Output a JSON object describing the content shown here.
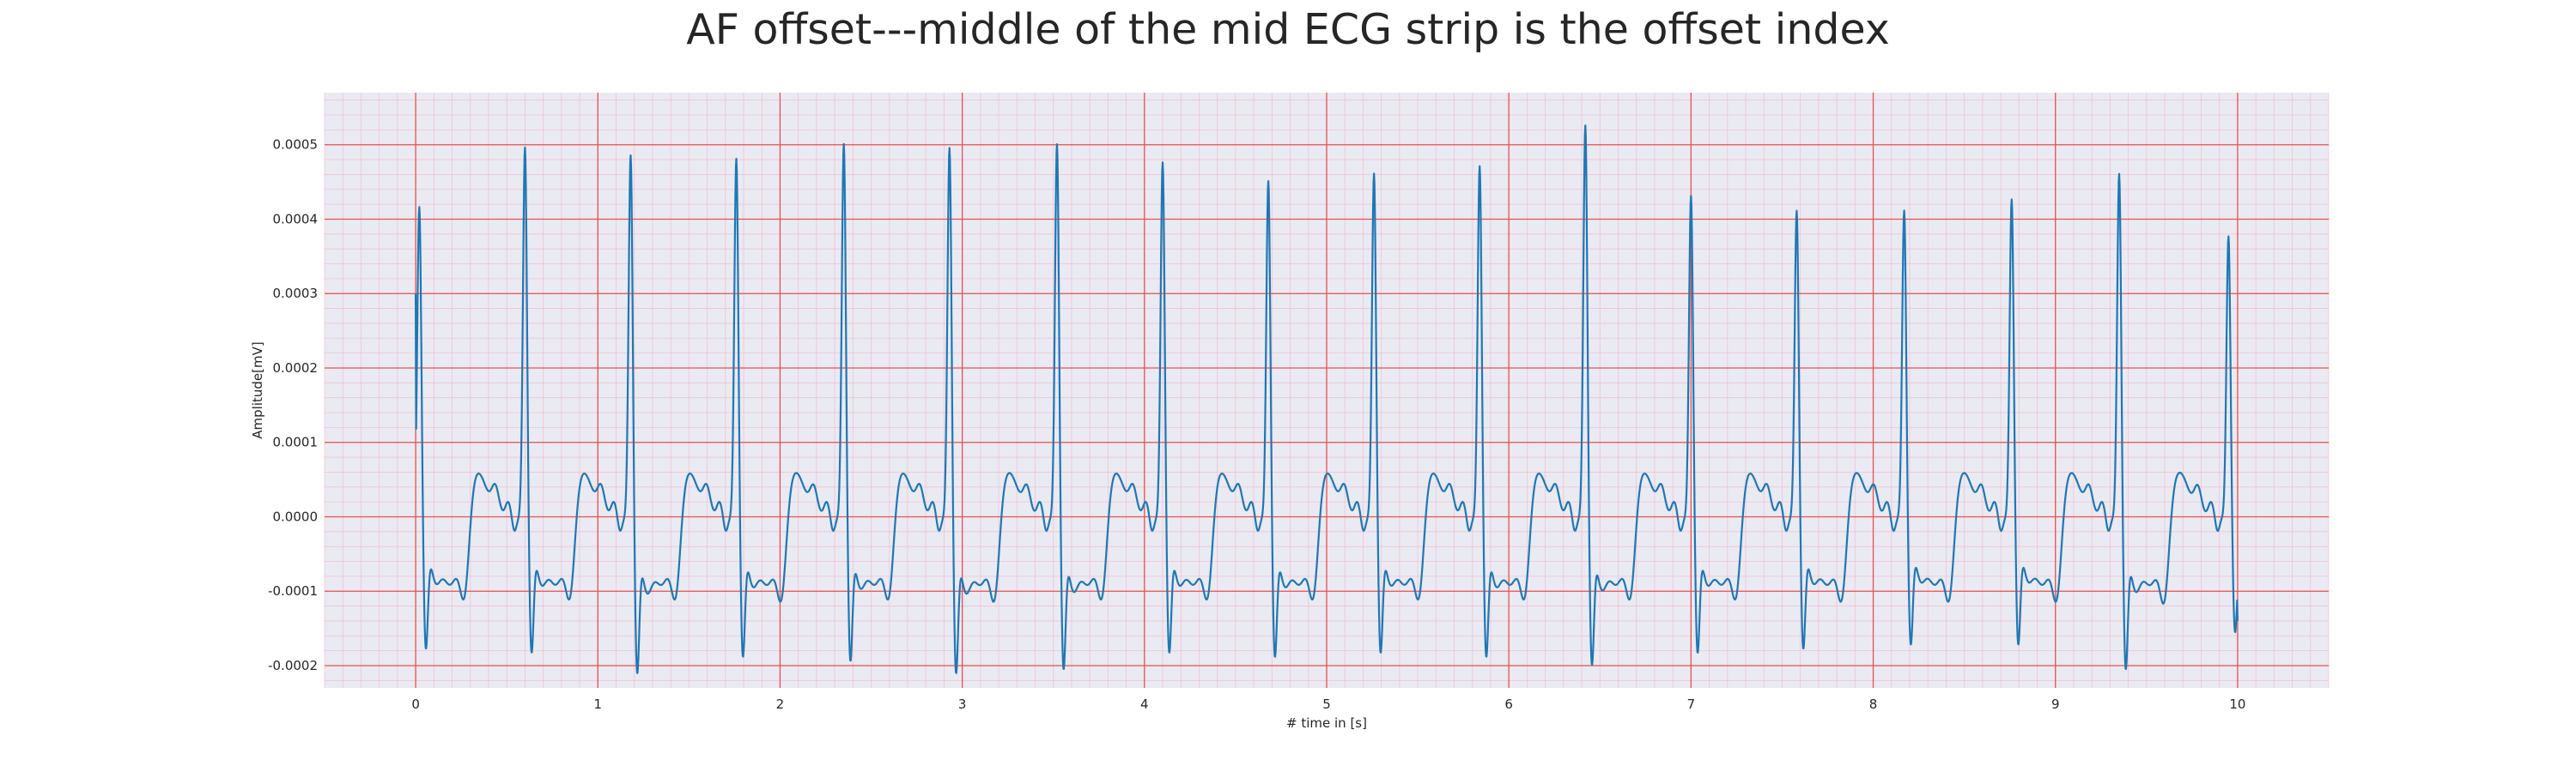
{
  "chart_data": {
    "type": "line",
    "title": "AF offset---middle of the mid ECG strip is the offset index",
    "xlabel": "# time in [s]",
    "ylabel": "Amplitude[mV]",
    "xlim": [
      -0.5,
      10.5
    ],
    "ylim": [
      -0.00023,
      0.00057
    ],
    "x_ticks": [
      0,
      1,
      2,
      3,
      4,
      5,
      6,
      7,
      8,
      9,
      10
    ],
    "y_ticks": [
      -0.0002,
      -0.0001,
      0.0,
      0.0001,
      0.0002,
      0.0003,
      0.0004,
      0.0005
    ],
    "x_tick_labels": [
      "0",
      "1",
      "2",
      "3",
      "4",
      "5",
      "6",
      "7",
      "8",
      "9",
      "10"
    ],
    "y_tick_labels": [
      "-0.0002",
      "-0.0001",
      "0.0000",
      "0.0001",
      "0.0002",
      "0.0003",
      "0.0004",
      "0.0005"
    ],
    "minor_grid_step": {
      "x": 0.1,
      "y": 2e-05
    },
    "grid": true,
    "background_color": "#eaeaf2",
    "major_grid_color": "#e8504f",
    "minor_grid_color": "#f4b4c4",
    "line_color": "#1f77b4",
    "series": [
      {
        "start": {
          "t": 0.0,
          "v": 0.0003
        },
        "beats": [
          {
            "t": 0.02,
            "peak": 0.00042,
            "trough": -0.00016
          },
          {
            "t": 0.6,
            "peak": 0.0005,
            "trough": -0.000165
          },
          {
            "t": 1.18,
            "peak": 0.00049,
            "trough": -0.00019
          },
          {
            "t": 1.76,
            "peak": 0.000485,
            "trough": -0.00017
          },
          {
            "t": 2.35,
            "peak": 0.000505,
            "trough": -0.000175
          },
          {
            "t": 2.93,
            "peak": 0.0005,
            "trough": -0.00019
          },
          {
            "t": 3.52,
            "peak": 0.000505,
            "trough": -0.000185
          },
          {
            "t": 4.1,
            "peak": 0.00048,
            "trough": -0.000165
          },
          {
            "t": 4.68,
            "peak": 0.000455,
            "trough": -0.00017
          },
          {
            "t": 5.26,
            "peak": 0.000465,
            "trough": -0.000165
          },
          {
            "t": 5.84,
            "peak": 0.000475,
            "trough": -0.00017
          },
          {
            "t": 6.42,
            "peak": 0.00053,
            "trough": -0.00018
          },
          {
            "t": 7.0,
            "peak": 0.000435,
            "trough": -0.000165
          },
          {
            "t": 7.58,
            "peak": 0.000415,
            "trough": -0.00016
          },
          {
            "t": 8.17,
            "peak": 0.000415,
            "trough": -0.000155
          },
          {
            "t": 8.76,
            "peak": 0.00043,
            "trough": -0.000155
          },
          {
            "t": 9.35,
            "peak": 0.000465,
            "trough": -0.000185
          },
          {
            "t": 9.95,
            "peak": 0.00038,
            "trough": -0.00014
          }
        ],
        "end": {
          "t": 10.0,
          "v": -0.00014
        }
      }
    ]
  }
}
